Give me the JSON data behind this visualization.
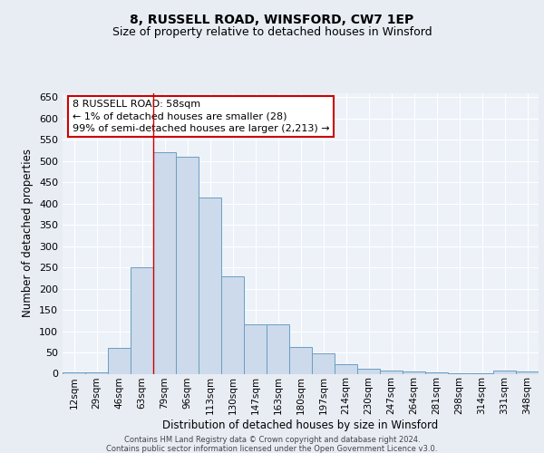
{
  "title1": "8, RUSSELL ROAD, WINSFORD, CW7 1EP",
  "title2": "Size of property relative to detached houses in Winsford",
  "xlabel": "Distribution of detached houses by size in Winsford",
  "ylabel": "Number of detached properties",
  "categories": [
    "12sqm",
    "29sqm",
    "46sqm",
    "63sqm",
    "79sqm",
    "96sqm",
    "113sqm",
    "130sqm",
    "147sqm",
    "163sqm",
    "180sqm",
    "197sqm",
    "214sqm",
    "230sqm",
    "247sqm",
    "264sqm",
    "281sqm",
    "298sqm",
    "314sqm",
    "331sqm",
    "348sqm"
  ],
  "values": [
    3,
    3,
    60,
    250,
    520,
    510,
    415,
    228,
    117,
    117,
    63,
    47,
    22,
    12,
    8,
    6,
    4,
    2,
    1,
    8,
    5
  ],
  "bar_color": "#ccdaeb",
  "bar_edge_color": "#6b9dc2",
  "bar_linewidth": 0.7,
  "vline_x_index": 3.5,
  "vline_color": "#cc0000",
  "annotation_line1": "8 RUSSELL ROAD: 58sqm",
  "annotation_line2": "← 1% of detached houses are smaller (28)",
  "annotation_line3": "99% of semi-detached houses are larger (2,213) →",
  "annotation_box_color": "#ffffff",
  "annotation_box_edge_color": "#cc0000",
  "ylim": [
    0,
    660
  ],
  "yticks": [
    0,
    50,
    100,
    150,
    200,
    250,
    300,
    350,
    400,
    450,
    500,
    550,
    600,
    650
  ],
  "bg_color": "#e8edf4",
  "plot_bg_color": "#edf2f8",
  "footer1": "Contains HM Land Registry data © Crown copyright and database right 2024.",
  "footer2": "Contains public sector information licensed under the Open Government Licence v3.0.",
  "title1_fontsize": 10,
  "title2_fontsize": 9,
  "xlabel_fontsize": 8.5,
  "ylabel_fontsize": 8.5,
  "tick_fontsize": 8,
  "xtick_fontsize": 7.5
}
